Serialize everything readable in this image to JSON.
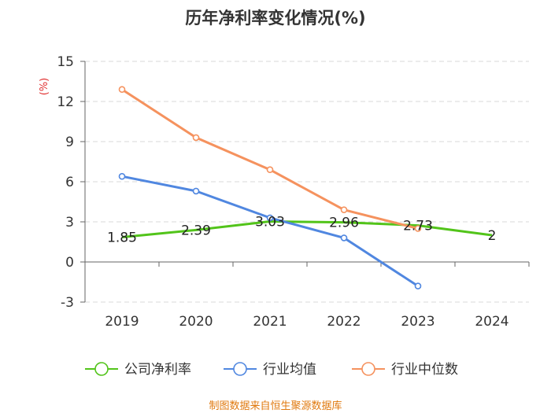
{
  "chart_data": {
    "type": "line",
    "title": "历年净利率变化情况(%)",
    "ylabel": "(%)",
    "xlabel": "",
    "ylim": [
      -3,
      15
    ],
    "yticks": [
      -3,
      0,
      3,
      6,
      9,
      12,
      15
    ],
    "categories": [
      "2019",
      "2020",
      "2021",
      "2022",
      "2023",
      "2024"
    ],
    "grid": true,
    "legend_position": "bottom",
    "series": [
      {
        "name": "公司净利率",
        "color": "#52c41a",
        "values": [
          1.85,
          2.39,
          3.03,
          2.96,
          2.73,
          2
        ],
        "labels": [
          "1.85",
          "2.39",
          "3.03",
          "2.96",
          "2.73",
          "2"
        ],
        "show_markers": false
      },
      {
        "name": "行业均值",
        "color": "#5087e0",
        "values": [
          6.4,
          5.3,
          3.3,
          1.8,
          -1.8,
          null
        ],
        "show_markers": true
      },
      {
        "name": "行业中位数",
        "color": "#f5925e",
        "values": [
          12.9,
          9.3,
          6.9,
          3.9,
          2.5,
          null
        ],
        "show_markers": true
      }
    ],
    "source": "制图数据来自恒生聚源数据库"
  }
}
